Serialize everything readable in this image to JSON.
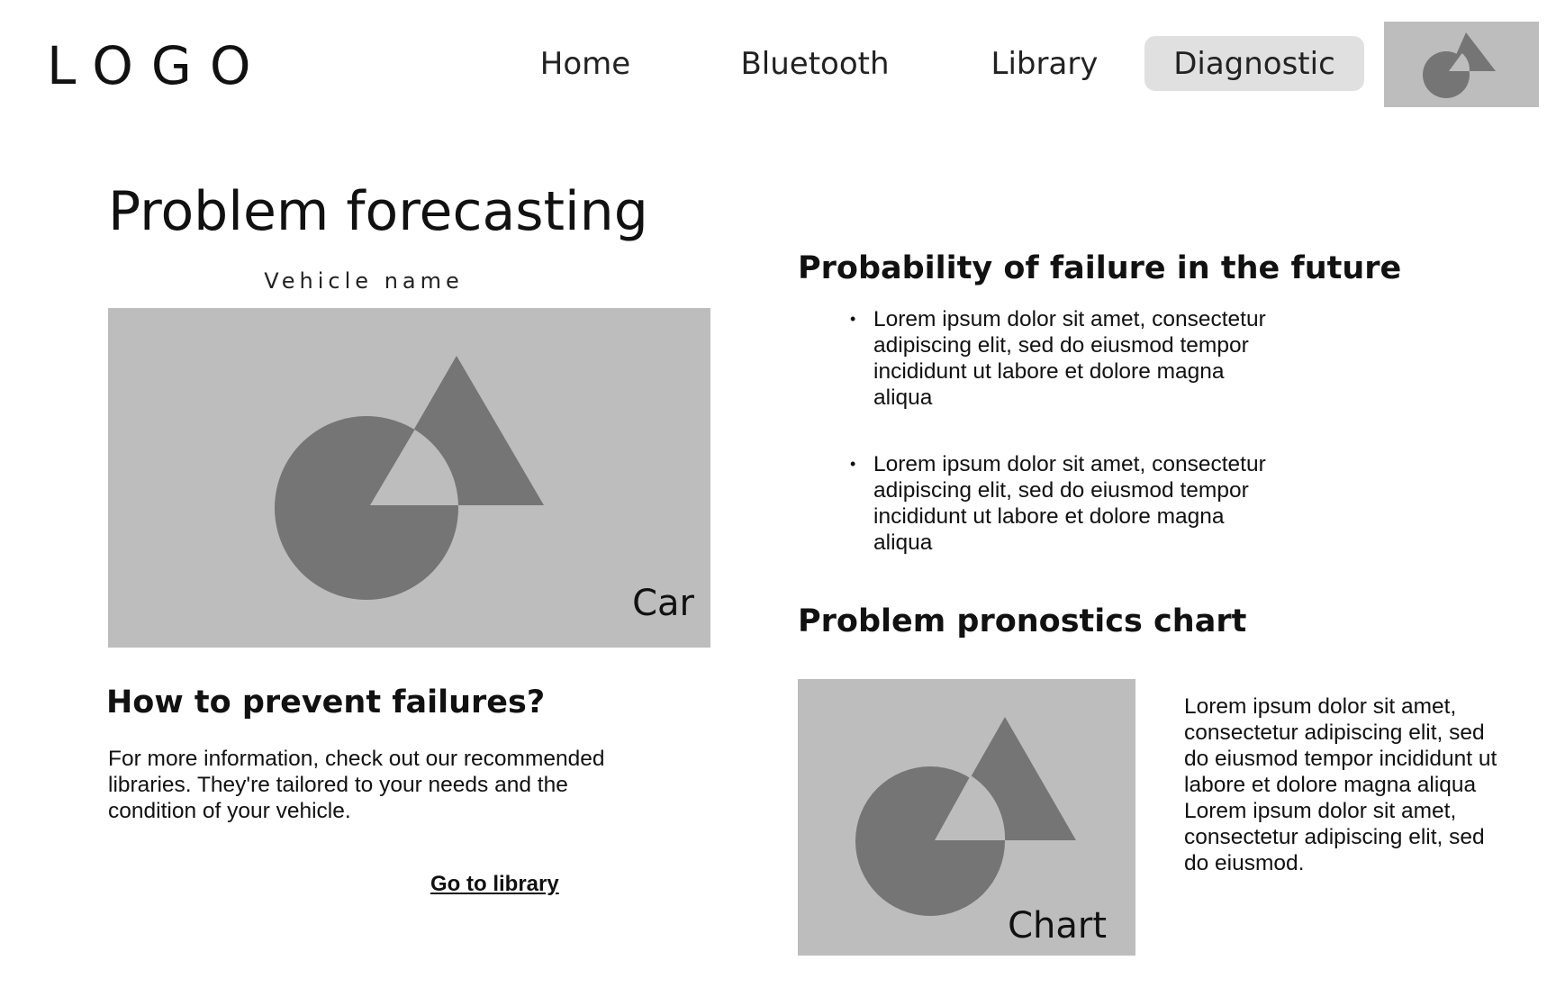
{
  "header": {
    "logo": "LOGO",
    "nav": [
      {
        "label": "Home",
        "active": false
      },
      {
        "label": "Bluetooth",
        "active": false
      },
      {
        "label": "Library",
        "active": false
      },
      {
        "label": "Diagnostic",
        "active": true
      }
    ],
    "avatar_icon": "image-placeholder-icon"
  },
  "main": {
    "title": "Problem forecasting",
    "vehicle_name": "Vehicle name",
    "car_image_label": "Car",
    "prevent": {
      "heading": "How to prevent failures?",
      "text": "For more information, check out our recommended libraries. They're tailored to your needs and the condition of your vehicle.",
      "link": "Go to library"
    },
    "probability": {
      "heading": "Probability of failure in the future",
      "bullets": [
        "Lorem ipsum dolor sit amet, consectetur adipiscing elit, sed do eiusmod tempor incididunt ut labore et dolore magna aliqua",
        "Lorem ipsum dolor sit amet, consectetur adipiscing elit, sed do eiusmod tempor incididunt ut labore et dolore magna aliqua"
      ]
    },
    "chart": {
      "heading": "Problem pronostics chart",
      "image_label": "Chart",
      "description": "Lorem ipsum dolor sit amet, consectetur adipiscing elit, sed do eiusmod tempor incididunt ut labore et dolore magna aliqua Lorem ipsum dolor sit amet, consectetur adipiscing elit, sed do eiusmod."
    }
  },
  "colors": {
    "placeholder_bg": "#bdbdbd",
    "placeholder_shape": "#757575",
    "active_nav_bg": "#e0e0e0"
  }
}
